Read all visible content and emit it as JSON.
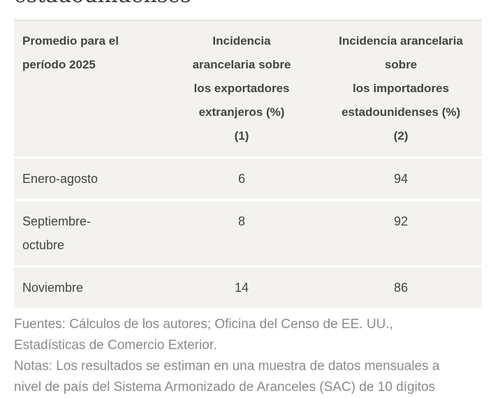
{
  "title_fragment": "estadounidenses",
  "table": {
    "headers": [
      [
        "Promedio para el",
        "período 2025"
      ],
      [
        "Incidencia",
        "arancelaria sobre",
        "los exportadores",
        "extranjeros (%)",
        "(1)"
      ],
      [
        "Incidencia arancelaria",
        "sobre",
        "los importadores",
        "estadounidenses (%)",
        "(2)"
      ]
    ],
    "rows": [
      {
        "period": [
          "Enero-agosto"
        ],
        "exporters": "6",
        "importers": "94"
      },
      {
        "period": [
          "Septiembre-",
          "octubre"
        ],
        "exporters": "8",
        "importers": "92"
      },
      {
        "period": [
          "Noviembre"
        ],
        "exporters": "14",
        "importers": "86"
      }
    ]
  },
  "notes": [
    "Fuentes: Cálculos de los autores; Oficina del Censo de EE. UU.,",
    "Estadísticas de Comercio Exterior.",
    "Notas: Los resultados se estiman en una muestra de datos mensuales a",
    "nivel de país del Sistema Armonizado de Aranceles (SAC) de 10 dígitos"
  ]
}
